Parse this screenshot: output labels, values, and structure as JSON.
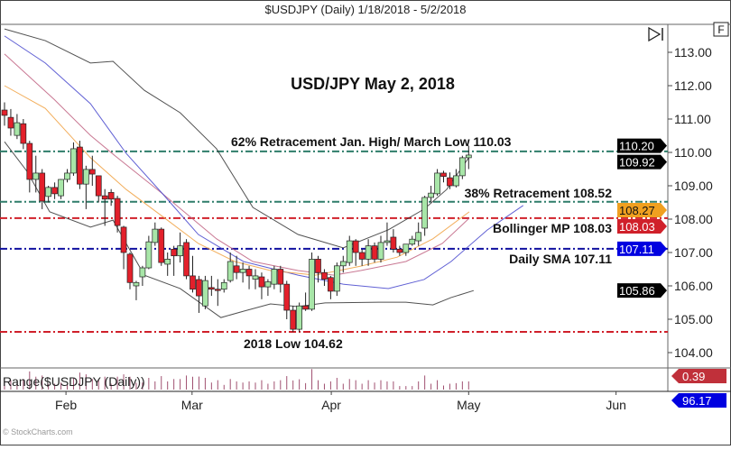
{
  "header": {
    "title": "$USDJPY (Daily)  1/18/2018 - 5/2/2018"
  },
  "controls": {
    "fullscreen_label": "F",
    "scroll_end_icon": "skip-to-end-icon"
  },
  "chart_data": {
    "type": "candlestick",
    "title": "USD/JPY May 2, 2018",
    "ylim": [
      103.7,
      113.9
    ],
    "y_ticks": [
      104,
      105,
      106,
      107,
      108,
      109,
      110,
      111,
      112,
      113
    ],
    "x_tick_labels": [
      {
        "label": "Feb",
        "index": 9.8
      },
      {
        "label": "Mar",
        "index": 29.9
      },
      {
        "label": "Apr",
        "index": 52.1
      },
      {
        "label": "May",
        "index": 74
      },
      {
        "label": "Jun",
        "index": 97.5
      }
    ],
    "colors": {
      "up": "#a8e6a8",
      "down": "#e3202b",
      "outline": "#222222"
    },
    "ohlc": [
      [
        111.27,
        111.5,
        110.8,
        111.11
      ],
      [
        111.05,
        111.3,
        110.5,
        110.73
      ],
      [
        110.51,
        111.15,
        110.4,
        110.89
      ],
      [
        110.86,
        111.0,
        110.1,
        110.27
      ],
      [
        110.27,
        110.35,
        108.8,
        109.19
      ],
      [
        109.19,
        109.9,
        108.8,
        109.38
      ],
      [
        109.38,
        109.5,
        108.3,
        108.54
      ],
      [
        108.68,
        109.0,
        108.5,
        108.95
      ],
      [
        108.95,
        109.1,
        108.6,
        108.76
      ],
      [
        108.7,
        109.2,
        108.6,
        109.19
      ],
      [
        109.19,
        109.5,
        109.1,
        109.38
      ],
      [
        109.38,
        110.3,
        109.3,
        110.11
      ],
      [
        110.16,
        110.35,
        108.9,
        109.05
      ],
      [
        109.05,
        109.6,
        108.3,
        109.49
      ],
      [
        109.49,
        109.9,
        109.0,
        109.35
      ],
      [
        109.3,
        109.3,
        108.5,
        108.7
      ],
      [
        108.7,
        108.9,
        107.8,
        108.6
      ],
      [
        108.8,
        108.9,
        108.4,
        108.6
      ],
      [
        108.62,
        108.7,
        107.6,
        107.81
      ],
      [
        107.76,
        107.8,
        106.5,
        107.0
      ],
      [
        106.95,
        107.0,
        105.9,
        106.1
      ],
      [
        106.0,
        106.15,
        105.57,
        106.1
      ],
      [
        106.27,
        106.6,
        106.0,
        106.54
      ],
      [
        106.54,
        107.5,
        106.5,
        107.32
      ],
      [
        107.3,
        107.9,
        107.2,
        107.7
      ],
      [
        107.7,
        107.75,
        106.6,
        106.7
      ],
      [
        106.65,
        107.0,
        106.3,
        106.8
      ],
      [
        107.1,
        107.2,
        106.3,
        106.9
      ],
      [
        106.9,
        107.6,
        106.7,
        107.2
      ],
      [
        107.3,
        107.4,
        106.2,
        106.3
      ],
      [
        106.3,
        106.9,
        105.8,
        105.9
      ],
      [
        106.19,
        106.3,
        105.19,
        105.7
      ],
      [
        105.4,
        106.3,
        105.3,
        106.16
      ],
      [
        105.95,
        106.3,
        105.7,
        105.9
      ],
      [
        105.9,
        106.2,
        105.4,
        105.88
      ],
      [
        105.9,
        106.2,
        105.8,
        106.1
      ],
      [
        106.16,
        107.0,
        106.1,
        106.73
      ],
      [
        106.6,
        106.9,
        106.2,
        106.4
      ],
      [
        106.4,
        106.7,
        106.1,
        106.5
      ],
      [
        106.5,
        106.6,
        105.9,
        106.3
      ],
      [
        106.2,
        106.5,
        105.9,
        106.3
      ],
      [
        106.27,
        106.4,
        105.6,
        105.97
      ],
      [
        105.97,
        106.2,
        105.7,
        106.12
      ],
      [
        106.05,
        106.6,
        105.9,
        106.5
      ],
      [
        106.5,
        106.6,
        105.8,
        106.05
      ],
      [
        106.05,
        106.15,
        105.0,
        105.27
      ],
      [
        105.27,
        105.4,
        104.62,
        104.7
      ],
      [
        104.7,
        105.5,
        104.62,
        105.4
      ],
      [
        105.4,
        105.8,
        105.25,
        105.3
      ],
      [
        105.3,
        107.0,
        105.25,
        106.8
      ],
      [
        106.8,
        106.9,
        106.1,
        106.4
      ],
      [
        106.4,
        106.5,
        106.0,
        106.2
      ],
      [
        106.25,
        106.3,
        105.6,
        105.84
      ],
      [
        105.84,
        106.7,
        105.7,
        106.6
      ],
      [
        106.6,
        106.9,
        106.4,
        106.73
      ],
      [
        106.7,
        107.5,
        106.6,
        107.35
      ],
      [
        107.35,
        107.4,
        106.6,
        107.0
      ],
      [
        107.0,
        107.1,
        106.6,
        106.8
      ],
      [
        106.8,
        107.4,
        106.6,
        107.2
      ],
      [
        107.2,
        107.3,
        106.7,
        106.8
      ],
      [
        106.8,
        107.5,
        106.7,
        107.3
      ],
      [
        107.3,
        107.9,
        107.2,
        107.35
      ],
      [
        107.46,
        107.7,
        107.0,
        107.1
      ],
      [
        107.1,
        107.2,
        106.9,
        107.0
      ],
      [
        107.0,
        107.2,
        106.9,
        107.25
      ],
      [
        107.25,
        107.5,
        107.2,
        107.4
      ],
      [
        107.35,
        107.9,
        107.2,
        107.6
      ],
      [
        107.73,
        108.7,
        107.5,
        108.65
      ],
      [
        108.65,
        109.0,
        108.5,
        108.78
      ],
      [
        108.76,
        109.5,
        108.7,
        109.38
      ],
      [
        109.38,
        109.45,
        109.1,
        109.28
      ],
      [
        109.24,
        109.4,
        108.9,
        109.0
      ],
      [
        109.0,
        109.5,
        108.95,
        109.3
      ],
      [
        109.3,
        109.9,
        109.2,
        109.84
      ],
      [
        109.84,
        110.2,
        109.5,
        109.92
      ]
    ],
    "overlays": [
      {
        "id": "bollinger-upper",
        "color": "#333333",
        "points": [
          [
            0,
            113.7
          ],
          [
            6.5,
            113.35
          ],
          [
            13.7,
            112.68
          ],
          [
            17.3,
            112.73
          ],
          [
            22.3,
            111.86
          ],
          [
            28,
            111.19
          ],
          [
            33.8,
            110.11
          ],
          [
            39.6,
            108.35
          ],
          [
            46.8,
            107.54
          ],
          [
            54,
            107.14
          ],
          [
            61.2,
            107.68
          ],
          [
            66.9,
            108.3
          ],
          [
            70.5,
            108.89
          ],
          [
            74,
            109.84
          ]
        ]
      },
      {
        "id": "bollinger-lower",
        "color": "#333333",
        "points": [
          [
            0,
            110.32
          ],
          [
            3.6,
            109.43
          ],
          [
            7.2,
            108.22
          ],
          [
            13.7,
            107.76
          ],
          [
            17.3,
            107.97
          ],
          [
            19.4,
            107.27
          ],
          [
            22.3,
            106.32
          ],
          [
            28,
            105.92
          ],
          [
            34.5,
            105.05
          ],
          [
            38.1,
            105.24
          ],
          [
            42.4,
            105.46
          ],
          [
            46.8,
            105.38
          ],
          [
            51.1,
            105.49
          ],
          [
            59.7,
            105.51
          ],
          [
            64,
            105.51
          ],
          [
            68.3,
            105.43
          ],
          [
            71.2,
            105.65
          ],
          [
            74.8,
            105.86
          ]
        ]
      },
      {
        "id": "bollinger-mp",
        "color": "#c06080",
        "points": [
          [
            0,
            112.95
          ],
          [
            7.9,
            111.59
          ],
          [
            13.7,
            110.51
          ],
          [
            18,
            109.84
          ],
          [
            25.2,
            108.76
          ],
          [
            33.8,
            107.41
          ],
          [
            39.6,
            106.73
          ],
          [
            46.8,
            106.46
          ],
          [
            52.5,
            106.32
          ],
          [
            56.8,
            106.46
          ],
          [
            64,
            106.73
          ],
          [
            69.8,
            107.27
          ],
          [
            74.1,
            108.03
          ]
        ]
      },
      {
        "id": "daily-sma",
        "color": "#4444cc",
        "points": [
          [
            0,
            113.49
          ],
          [
            6.5,
            112.68
          ],
          [
            13.7,
            111.46
          ],
          [
            19.4,
            109.97
          ],
          [
            25.2,
            108.76
          ],
          [
            30.9,
            107.54
          ],
          [
            38.1,
            106.73
          ],
          [
            46.8,
            106.32
          ],
          [
            54,
            106.05
          ],
          [
            61.2,
            105.92
          ],
          [
            66.9,
            106.19
          ],
          [
            71.2,
            106.73
          ],
          [
            77,
            107.68
          ],
          [
            82.7,
            108.41
          ]
        ]
      },
      {
        "id": "ema",
        "color": "#f0a040",
        "points": [
          [
            0,
            112.0
          ],
          [
            6.5,
            111.32
          ],
          [
            13.7,
            109.84
          ],
          [
            19.4,
            108.89
          ],
          [
            25.2,
            108.08
          ],
          [
            30.9,
            107.27
          ],
          [
            36.7,
            106.73
          ],
          [
            42.4,
            106.46
          ],
          [
            49.6,
            106.32
          ],
          [
            56.8,
            106.59
          ],
          [
            62.6,
            106.86
          ],
          [
            68.3,
            107.41
          ],
          [
            74.1,
            108.22
          ]
        ]
      }
    ],
    "levels": [
      {
        "value": 110.03,
        "color": "#2e7d6a",
        "label": "62% Retracement Jan. High/ March Low 110.03"
      },
      {
        "value": 108.52,
        "color": "#2e7d6a",
        "label": "38% Retracement 108.52"
      },
      {
        "value": 108.03,
        "color": "#d0202a",
        "label": "Bollinger MP 108.03"
      },
      {
        "value": 107.11,
        "color": "#1010a0",
        "label": "Daily SMA 107.11"
      },
      {
        "value": 104.62,
        "color": "#d0202a",
        "label": "2018 Low 104.62"
      }
    ],
    "price_tags": [
      {
        "value": 110.2,
        "text": "110.20",
        "bg": "#000000",
        "fg": "#ffffff"
      },
      {
        "value": 109.92,
        "text": "109.92",
        "bg": "#000000",
        "fg": "#ffffff"
      },
      {
        "value": 108.03,
        "text": "108.03",
        "bg": "#d0202a",
        "fg": "#ffffff"
      },
      {
        "value": 108.27,
        "text": "108.27",
        "bg": "#f0a020",
        "fg": "#111111"
      },
      {
        "value": 107.11,
        "text": "107.11",
        "bg": "#0000e0",
        "fg": "#ffffff"
      },
      {
        "value": 105.86,
        "text": "105.86",
        "bg": "#000000",
        "fg": "#ffffff"
      }
    ],
    "indicator": {
      "label": "Range($USDJPY (Daily))",
      "watermark": "© StockCharts.com",
      "color": "#a05070",
      "tags": [
        {
          "text": "0.39",
          "bg": "#c0303a",
          "fg": "#ffffff"
        },
        {
          "text": "96.17",
          "bg": "#0000e0",
          "fg": "#ffffff"
        }
      ]
    }
  }
}
